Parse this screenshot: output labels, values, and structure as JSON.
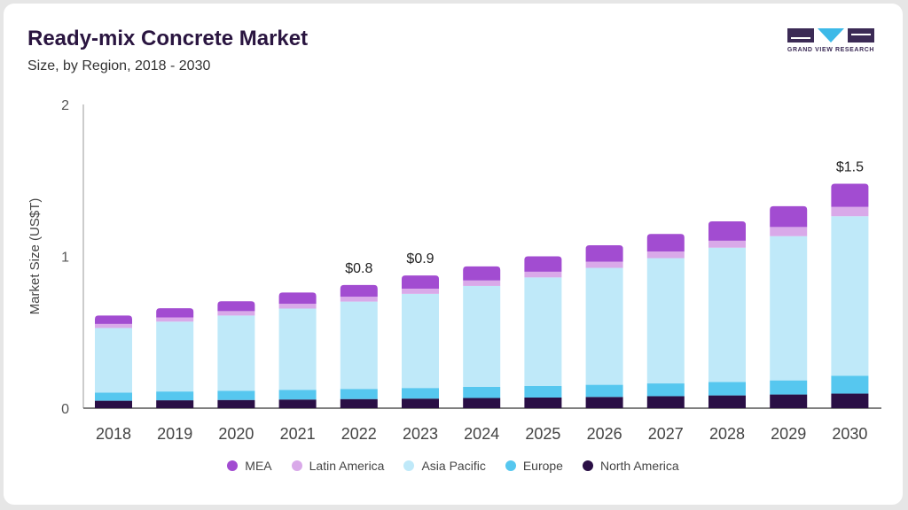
{
  "header": {
    "title": "Ready-mix Concrete Market",
    "subtitle": "Size, by Region, 2018 - 2030"
  },
  "logo": {
    "name": "grand-view-research-logo",
    "text": "GRAND VIEW RESEARCH",
    "color": "#3b2a55",
    "accent": "#3db9e8"
  },
  "chart_data": {
    "type": "bar",
    "stacked": true,
    "title": "Ready-mix Concrete Market",
    "subtitle": "Size, by Region, 2018 - 2030",
    "xlabel": "",
    "ylabel": "Market Size (US$T)",
    "ylim": [
      0,
      2
    ],
    "yticks": [
      "0",
      "1",
      "2"
    ],
    "grid": false,
    "legend_position": "bottom",
    "categories": [
      "2018",
      "2019",
      "2020",
      "2021",
      "2022",
      "2023",
      "2024",
      "2025",
      "2026",
      "2027",
      "2028",
      "2029",
      "2030"
    ],
    "series": [
      {
        "name": "North America",
        "color": "#2a0f45",
        "values": [
          0.049,
          0.052,
          0.054,
          0.057,
          0.06,
          0.063,
          0.067,
          0.07,
          0.074,
          0.079,
          0.084,
          0.09,
          0.096
        ]
      },
      {
        "name": "Europe",
        "color": "#56c7ef",
        "values": [
          0.054,
          0.058,
          0.061,
          0.064,
          0.067,
          0.07,
          0.073,
          0.076,
          0.08,
          0.084,
          0.088,
          0.093,
          0.118
        ]
      },
      {
        "name": "Asia Pacific",
        "color": "#bfe9f9",
        "values": [
          0.425,
          0.46,
          0.495,
          0.535,
          0.575,
          0.62,
          0.665,
          0.715,
          0.77,
          0.825,
          0.885,
          0.95,
          1.05
        ]
      },
      {
        "name": "Latin America",
        "color": "#d9a9e9",
        "values": [
          0.027,
          0.028,
          0.029,
          0.031,
          0.032,
          0.034,
          0.036,
          0.038,
          0.04,
          0.043,
          0.046,
          0.06,
          0.062
        ]
      },
      {
        "name": "MEA",
        "color": "#a24cd1",
        "values": [
          0.055,
          0.06,
          0.065,
          0.075,
          0.077,
          0.087,
          0.093,
          0.101,
          0.109,
          0.116,
          0.127,
          0.137,
          0.152
        ]
      }
    ],
    "annotations": [
      {
        "category": "2022",
        "text": "$0.8"
      },
      {
        "category": "2023",
        "text": "$0.9"
      },
      {
        "category": "2030",
        "text": "$1.5"
      }
    ]
  }
}
